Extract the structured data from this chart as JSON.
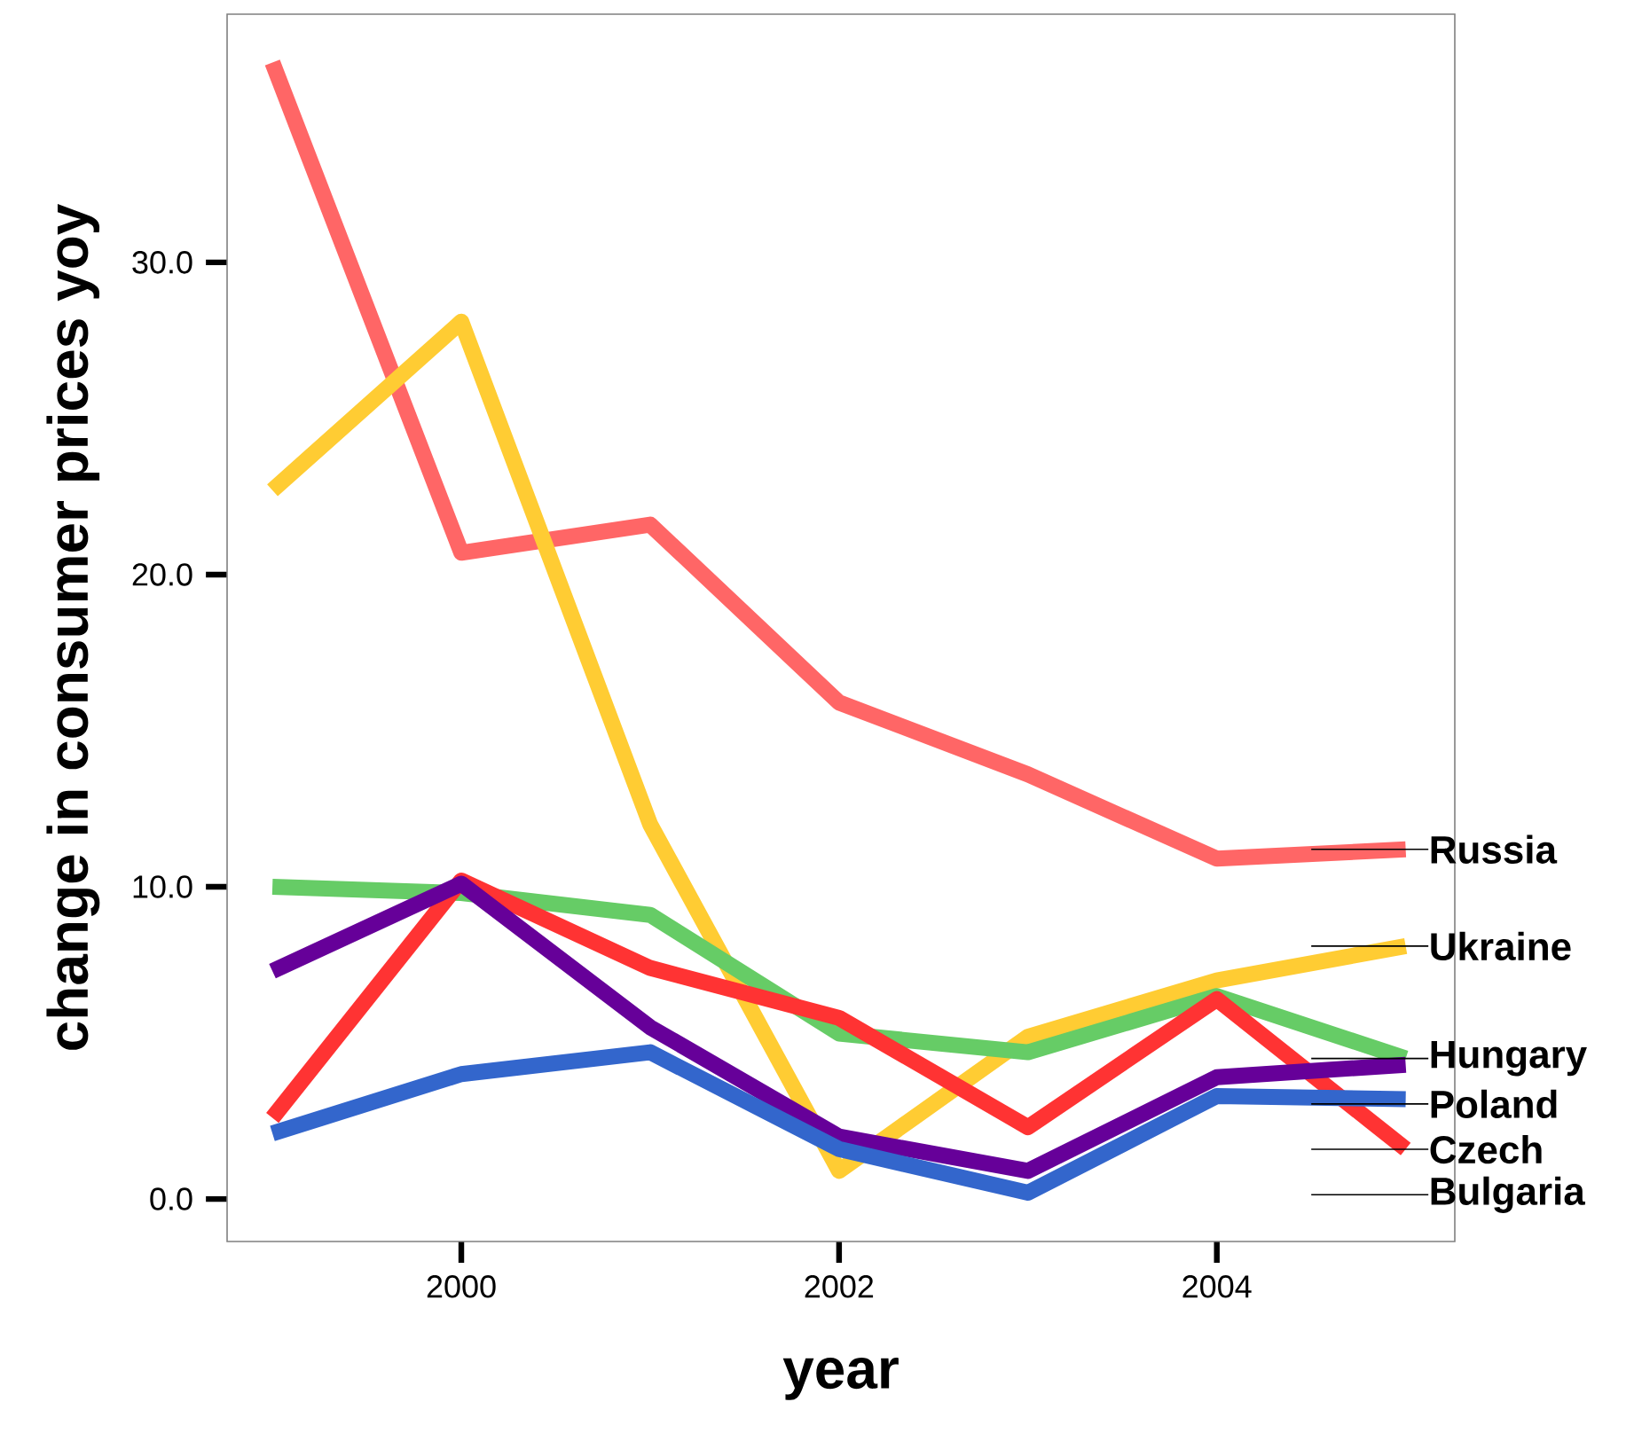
{
  "chart_data": {
    "type": "line",
    "xlabel": "year",
    "ylabel": "change in consumer prices yoy",
    "x": [
      1999,
      2000,
      2001,
      2002,
      2003,
      2004,
      2005
    ],
    "series": [
      {
        "name": "Russia",
        "color": "#ff6666",
        "values": [
          36.4,
          20.7,
          21.6,
          15.9,
          13.6,
          10.9,
          11.2
        ]
      },
      {
        "name": "Ukraine",
        "color": "#ffcc33",
        "values": [
          22.7,
          28.1,
          12.0,
          0.9,
          5.2,
          7.0,
          8.1
        ]
      },
      {
        "name": "Hungary",
        "color": "#66cc66",
        "values": [
          10.0,
          9.8,
          9.1,
          5.3,
          4.7,
          6.5,
          4.5
        ]
      },
      {
        "name": "Bulgaria",
        "color": "#ff3333",
        "values": [
          2.6,
          10.2,
          7.4,
          5.8,
          2.3,
          6.4,
          1.6
        ]
      },
      {
        "name": "Poland",
        "color": "#660099",
        "values": [
          7.3,
          10.1,
          5.5,
          2.0,
          0.9,
          3.9,
          4.3
        ]
      },
      {
        "name": "Czech",
        "color": "#3366cc",
        "values": [
          2.1,
          4.0,
          4.7,
          1.6,
          0.2,
          3.3,
          3.2
        ]
      }
    ],
    "xlim": [
      1998.76,
      2005.26
    ],
    "ylim": [
      -1.36,
      37.95
    ],
    "xticks": [
      2000,
      2002,
      2004
    ],
    "yticks": [
      {
        "value": 0,
        "label": "0.0"
      },
      {
        "value": 10,
        "label": "10.0"
      },
      {
        "value": 20,
        "label": "20.0"
      },
      {
        "value": 30,
        "label": "30.0"
      }
    ],
    "grid": false,
    "marker": "none",
    "line_style": "solid"
  }
}
